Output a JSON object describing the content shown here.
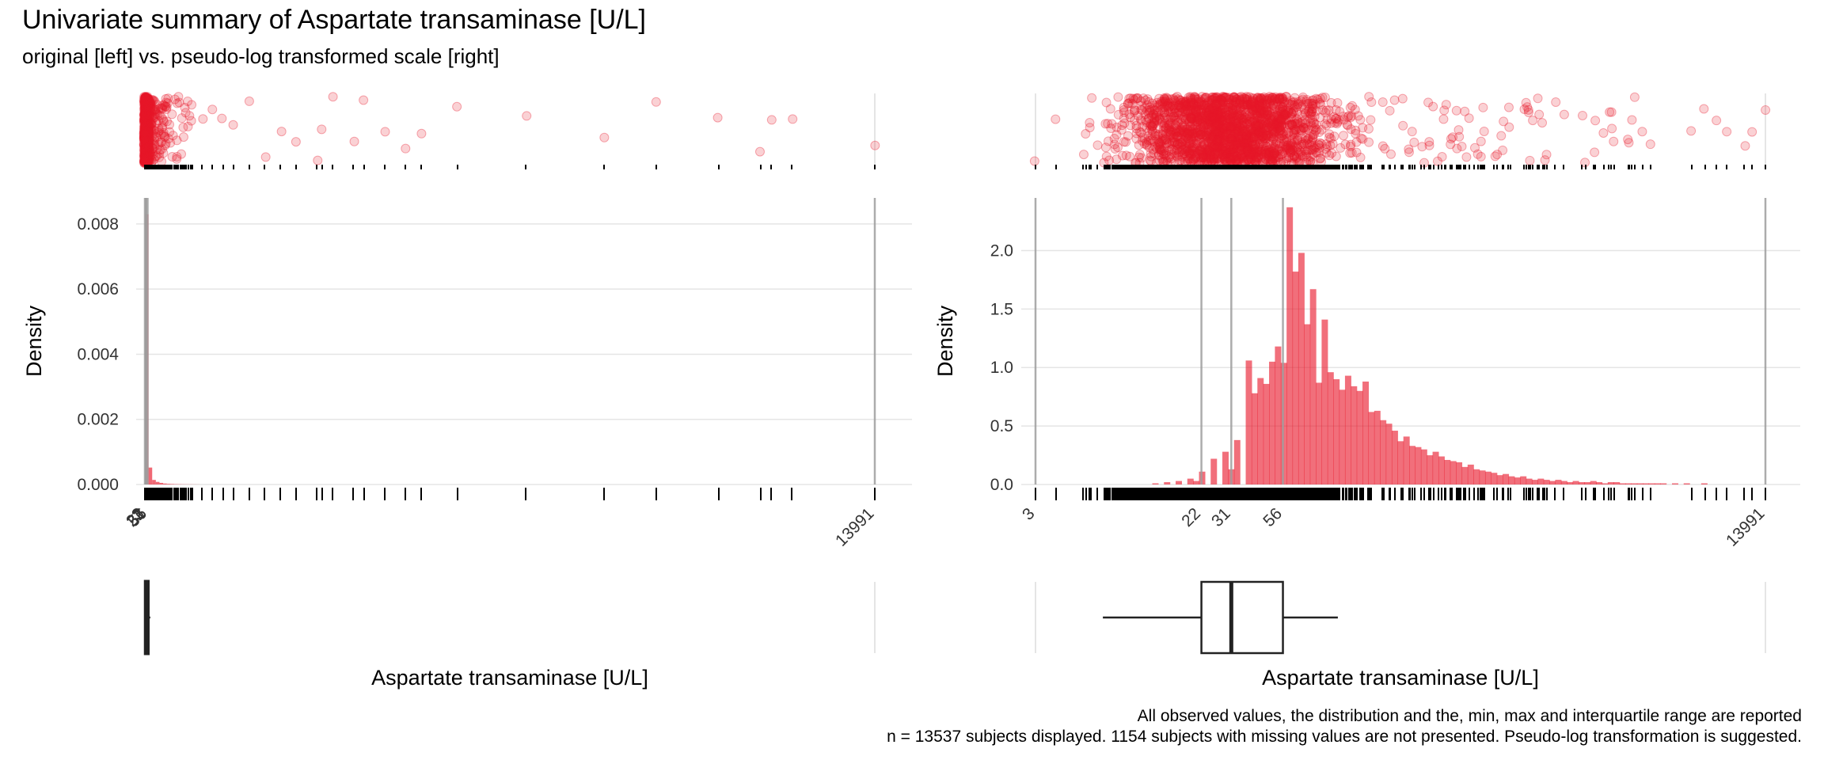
{
  "title": "Univariate summary of Aspartate transaminase [U/L]",
  "subtitle": "original [left] vs. pseudo-log transformed scale [right]",
  "caption_line1": "All observed values, the distribution and the, min, max and interquartile range are reported",
  "caption_line2": "n = 13537 subjects displayed. 1154 subjects with missing values are not presented. Pseudo-log transformation is suggested.",
  "colors": {
    "accent": "#e8172a",
    "grid": "#e5e5e5",
    "ref_line": "#9e9e9e",
    "box": "#222222"
  },
  "chart_data": [
    {
      "panel": "left",
      "scale": "original",
      "type": "bar",
      "ylabel": "Density",
      "xlabel": "Aspartate transaminase [U/L]",
      "xlim": [
        3,
        13991
      ],
      "ylim": [
        0,
        0.0088
      ],
      "yticks": [
        0.0,
        0.002,
        0.004,
        0.006,
        0.008
      ],
      "ytick_labels": [
        "0.000",
        "0.002",
        "0.004",
        "0.006",
        "0.008"
      ],
      "xtick_values": [
        3,
        22,
        31,
        56,
        13991
      ],
      "xtick_labels": [
        "3",
        "22",
        "31",
        "56",
        "13991"
      ],
      "grid": true,
      "histogram": {
        "bin_width": 70,
        "bins": [
          {
            "x0": 3,
            "density": 0.0083
          },
          {
            "x0": 73,
            "density": 0.00052
          },
          {
            "x0": 143,
            "density": 0.00014
          },
          {
            "x0": 213,
            "density": 8e-05
          },
          {
            "x0": 283,
            "density": 5e-05
          },
          {
            "x0": 353,
            "density": 3e-05
          },
          {
            "x0": 423,
            "density": 2e-05
          },
          {
            "x0": 493,
            "density": 1.5e-05
          },
          {
            "x0": 563,
            "density": 1e-05
          },
          {
            "x0": 633,
            "density": 8e-06
          },
          {
            "x0": 703,
            "density": 6e-06
          },
          {
            "x0": 773,
            "density": 5e-06
          },
          {
            "x0": 843,
            "density": 4e-06
          },
          {
            "x0": 913,
            "density": 3e-06
          },
          {
            "x0": 983,
            "density": 2e-06
          }
        ]
      },
      "reference_lines": [
        3,
        22,
        31,
        56,
        13991
      ],
      "sparse_observations": [
        1100,
        1300,
        1500,
        1700,
        2000,
        2300,
        2600,
        2900,
        3300,
        3400,
        3600,
        4000,
        4200,
        4600,
        5000,
        5300,
        6000,
        7300,
        8800,
        9800,
        11000,
        11800,
        12000,
        12400,
        13991
      ],
      "boxplot": {
        "min": 3,
        "q1": 22,
        "median": 31,
        "q3": 56,
        "max": 107
      }
    },
    {
      "panel": "right",
      "scale": "pseudo-log",
      "type": "bar",
      "ylabel": "Density",
      "xlabel": "Aspartate transaminase [U/L]",
      "xlim": [
        3,
        13991
      ],
      "ylim": [
        0,
        2.45
      ],
      "yticks": [
        0.0,
        0.5,
        1.0,
        1.5,
        2.0
      ],
      "ytick_labels": [
        "0.0",
        "0.5",
        "1.0",
        "1.5",
        "2.0"
      ],
      "xtick_values": [
        3,
        22,
        31,
        56,
        13991
      ],
      "xtick_labels": [
        "3",
        "22",
        "31",
        "56",
        "13991"
      ],
      "grid": true,
      "histogram": {
        "x_start": 3,
        "x_end": 13991,
        "n_bins": 125,
        "densities": [
          0.0,
          0.0,
          0.0,
          0.0,
          0.0,
          0.0,
          0.0,
          0.0,
          0.0,
          0.0,
          0.0,
          0.0,
          0.0,
          0.0,
          0.0,
          0.0,
          0.0,
          0.0,
          0.0,
          0.0,
          0.01,
          0.0,
          0.02,
          0.0,
          0.03,
          0.0,
          0.05,
          0.03,
          0.11,
          0.0,
          0.22,
          0.0,
          0.28,
          0.13,
          0.38,
          0.0,
          1.06,
          0.78,
          0.91,
          0.86,
          1.05,
          1.18,
          1.04,
          2.37,
          1.82,
          1.98,
          1.37,
          1.67,
          0.87,
          1.41,
          0.96,
          0.9,
          0.81,
          0.93,
          0.84,
          0.8,
          0.88,
          0.62,
          0.63,
          0.55,
          0.52,
          0.46,
          0.37,
          0.41,
          0.33,
          0.32,
          0.3,
          0.25,
          0.28,
          0.24,
          0.21,
          0.2,
          0.19,
          0.15,
          0.17,
          0.13,
          0.12,
          0.11,
          0.1,
          0.08,
          0.09,
          0.07,
          0.06,
          0.07,
          0.05,
          0.04,
          0.05,
          0.04,
          0.03,
          0.04,
          0.03,
          0.02,
          0.03,
          0.02,
          0.02,
          0.03,
          0.02,
          0.01,
          0.02,
          0.02,
          0.01,
          0.01,
          0.01,
          0.01,
          0.01,
          0.01,
          0.01,
          0.01,
          0.0,
          0.01,
          0.0,
          0.01,
          0.0,
          0.0,
          0.01,
          0.0,
          0.0,
          0.0,
          0.0,
          0.0,
          0.0,
          0.0,
          0.0,
          0.0,
          0.0
        ]
      },
      "reference_lines": [
        3,
        22,
        31,
        56,
        13991
      ],
      "boxplot": {
        "min": 7,
        "q1": 22,
        "median": 31,
        "q3": 56,
        "max": 105
      }
    }
  ]
}
